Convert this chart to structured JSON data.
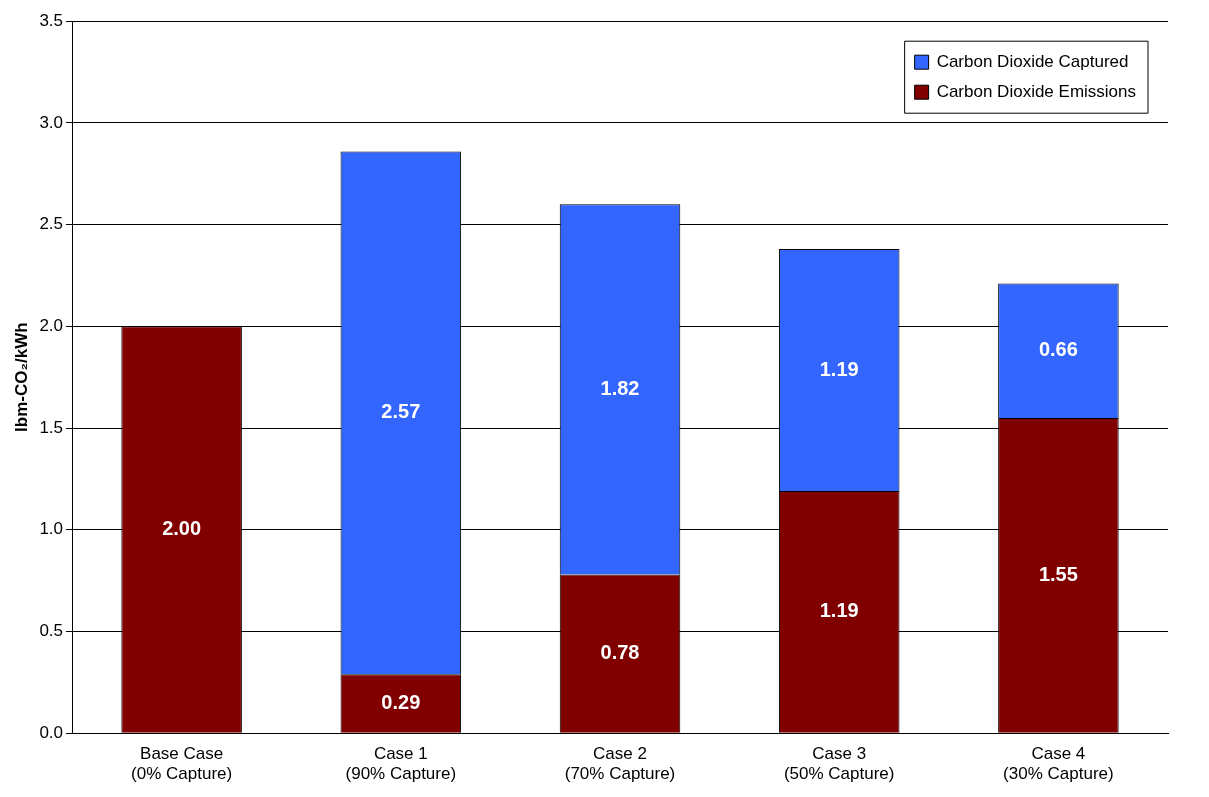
{
  "chart_data": {
    "type": "bar",
    "stacked": true,
    "ylabel": "lbm-CO₂/kWh",
    "categories": [
      "Base Case\n(0% Capture)",
      "Case 1\n(90% Capture)",
      "Case 2\n(70% Capture)",
      "Case 3\n(50% Capture)",
      "Case 4\n(30% Capture)"
    ],
    "series": [
      {
        "name": "Carbon Dioxide Emissions",
        "color": "#800000",
        "values": [
          2.0,
          0.29,
          0.78,
          1.19,
          1.55
        ],
        "value_labels": [
          "2.00",
          "0.29",
          "0.78",
          "1.19",
          "1.55"
        ]
      },
      {
        "name": "Carbon Dioxide Captured",
        "color": "#3366ff",
        "values": [
          null,
          2.57,
          1.82,
          1.19,
          0.66
        ],
        "value_labels": [
          null,
          "2.57",
          "1.82",
          "1.19",
          "0.66"
        ]
      }
    ],
    "ylim": [
      0,
      3.5
    ],
    "yticks": [
      {
        "value": 0,
        "label": "0.0"
      },
      {
        "value": 0.5,
        "label": "0.5"
      },
      {
        "value": 1,
        "label": "1.0"
      },
      {
        "value": 1.5,
        "label": "1.5"
      },
      {
        "value": 2,
        "label": "2.0"
      },
      {
        "value": 2.5,
        "label": "2.5"
      },
      {
        "value": 3,
        "label": "3.0"
      },
      {
        "value": 3.5,
        "label": "3.5"
      }
    ],
    "grid": "y",
    "legend": "top right"
  }
}
